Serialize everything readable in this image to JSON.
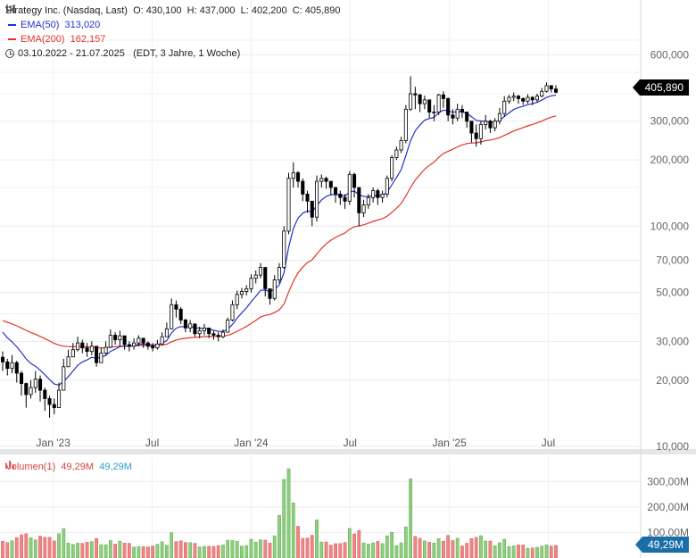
{
  "header": {
    "title": "Strategy Inc. (Nasdaq, Last)",
    "open": "O: 430,100",
    "high": "H: 437,000",
    "low": "L: 402,200",
    "close": "C: 405,890",
    "ema50_label": "EMA(50)",
    "ema50_value": "313,020",
    "ema200_label": "EMA(200)",
    "ema200_value": "162,157",
    "range": "03.10.2022 - 21.07.2025",
    "range_note": "(EDT, 3 Jahre, 1 Woche)",
    "volume_label": "Volumen(1)",
    "volume_value_red": "49,29M",
    "volume_value_blue": "49,29M"
  },
  "last_price_badge": "405,890",
  "volume_badge": "49,29M",
  "colors": {
    "up": "#ffffff",
    "down": "#000000",
    "ema50": "#2233cc",
    "ema200": "#e0342a",
    "vol_up": "#8fce80",
    "vol_down": "#ef8686"
  },
  "chart_data": {
    "type": "candlestick",
    "title": "Strategy Inc. (Nasdaq, Last)",
    "xlabel": "",
    "ylabel": "",
    "y_scale": "log",
    "ylim": [
      10,
      700
    ],
    "x_tick_labels": [
      "Jan '23",
      "Jul",
      "Jan '24",
      "Jul",
      "Jan '25",
      "Jul"
    ],
    "y_tick_labels": [
      "600,000",
      "300,000",
      "200,000",
      "100,000",
      "70,000",
      "50,000",
      "30,000",
      "20,000",
      "10,000"
    ],
    "y_tick_values": [
      600,
      300,
      200,
      100,
      70,
      50,
      30,
      20,
      10
    ],
    "grid": true,
    "legend": "top-left",
    "weekly_close": [
      24.2,
      22.6,
      24.0,
      21.5,
      19.3,
      17.2,
      18.5,
      20.2,
      18.0,
      16.5,
      15.5,
      15.0,
      18.0,
      23.0,
      25.5,
      27.5,
      29.5,
      28.0,
      27.0,
      28.5,
      24.0,
      26.5,
      28.2,
      32.0,
      30.5,
      31.8,
      29.0,
      28.5,
      29.5,
      31.0,
      29.5,
      28.5,
      28.0,
      29.2,
      31.5,
      34.2,
      44.0,
      42.0,
      37.5,
      34.5,
      36.0,
      32.5,
      33.5,
      34.5,
      32.5,
      32.0,
      31.5,
      33.0,
      37.5,
      44.0,
      49.0,
      50.5,
      52.0,
      58.0,
      60.0,
      65.0,
      52.0,
      47.0,
      57.0,
      65.0,
      95.0,
      165.0,
      175.0,
      160.0,
      140.0,
      130.0,
      110.0,
      160.0,
      165.0,
      160.0,
      150.0,
      140.0,
      135.0,
      130.0,
      172.0,
      150.0,
      115.0,
      125.0,
      135.0,
      145.0,
      135.0,
      140.0,
      165.0,
      205.0,
      222.0,
      245.0,
      340.0,
      400.0,
      395.0,
      360.0,
      375.0,
      330.0,
      330.0,
      395.0,
      380.0,
      320.0,
      310.0,
      340.0,
      330.0,
      300.0,
      265.0,
      250.0,
      290.0,
      300.0,
      280.0,
      300.0,
      325.0,
      370.0,
      385.0,
      390.0,
      380.0,
      370.0,
      385.0,
      375.0,
      390.0,
      410.0,
      435.0,
      420.0,
      405.9
    ],
    "weekly_high": [
      27.0,
      25.0,
      26.0,
      24.5,
      22.0,
      19.5,
      20.0,
      22.0,
      21.0,
      18.5,
      17.0,
      16.5,
      19.5,
      25.0,
      27.5,
      29.5,
      31.5,
      30.5,
      29.5,
      30.0,
      27.5,
      28.0,
      30.0,
      34.0,
      33.0,
      33.5,
      31.0,
      30.0,
      31.0,
      32.0,
      31.0,
      30.0,
      29.5,
      30.5,
      33.0,
      36.5,
      47.0,
      46.0,
      43.0,
      38.0,
      37.5,
      35.0,
      35.0,
      36.0,
      34.5,
      33.5,
      33.0,
      34.0,
      38.5,
      46.0,
      51.0,
      52.5,
      54.0,
      60.5,
      63.0,
      68.0,
      60.0,
      52.0,
      60.0,
      68.0,
      100.0,
      175.0,
      195.0,
      178.0,
      165.0,
      145.0,
      130.0,
      170.0,
      172.0,
      168.0,
      160.0,
      150.0,
      145.0,
      140.0,
      178.0,
      175.0,
      135.0,
      132.0,
      140.0,
      150.0,
      148.0,
      145.0,
      170.0,
      210.0,
      230.0,
      255.0,
      355.0,
      480.0,
      430.0,
      400.0,
      392.0,
      375.0,
      355.0,
      400.0,
      410.0,
      385.0,
      340.0,
      360.0,
      355.0,
      330.0,
      300.0,
      290.0,
      300.0,
      320.0,
      305.0,
      310.0,
      345.0,
      390.0,
      395.0,
      405.0,
      395.0,
      385.0,
      398.0,
      390.0,
      400.0,
      425.0,
      450.0,
      437.0,
      437.0
    ],
    "weekly_low": [
      22.0,
      21.0,
      21.5,
      19.5,
      17.0,
      15.0,
      16.5,
      17.5,
      16.0,
      14.5,
      13.5,
      14.0,
      15.0,
      18.0,
      23.0,
      25.5,
      27.0,
      26.5,
      25.5,
      26.0,
      23.0,
      24.0,
      26.0,
      28.0,
      29.0,
      28.5,
      27.5,
      27.0,
      27.5,
      28.5,
      28.0,
      27.5,
      27.0,
      27.5,
      29.0,
      31.5,
      34.0,
      38.5,
      36.0,
      33.0,
      33.0,
      31.5,
      31.0,
      32.0,
      31.0,
      30.5,
      30.0,
      31.0,
      33.0,
      37.0,
      42.0,
      47.0,
      48.5,
      50.0,
      55.0,
      58.0,
      48.0,
      44.0,
      46.0,
      55.0,
      64.0,
      92.0,
      150.0,
      150.0,
      130.0,
      115.0,
      100.0,
      105.0,
      150.0,
      148.0,
      138.0,
      128.0,
      125.0,
      120.0,
      125.0,
      135.0,
      100.0,
      110.0,
      120.0,
      128.0,
      125.0,
      128.0,
      135.0,
      160.0,
      200.0,
      215.0,
      238.0,
      335.0,
      340.0,
      330.0,
      340.0,
      310.0,
      300.0,
      320.0,
      345.0,
      300.0,
      290.0,
      300.0,
      310.0,
      280.0,
      240.0,
      230.0,
      235.0,
      275.0,
      265.0,
      270.0,
      290.0,
      315.0,
      360.0,
      370.0,
      360.0,
      355.0,
      360.0,
      355.0,
      365.0,
      385.0,
      405.0,
      405.0,
      402.2
    ],
    "ema50_last": 313.02,
    "ema200_last": 162.157,
    "last_close": 405.89,
    "volume": {
      "ylim_millions": [
        0,
        350
      ],
      "y_tick_labels": [
        "300,00M",
        "200,00M",
        "100,00M"
      ],
      "y_tick_values": [
        300,
        200,
        100
      ],
      "last_millions": 49.29
    }
  }
}
